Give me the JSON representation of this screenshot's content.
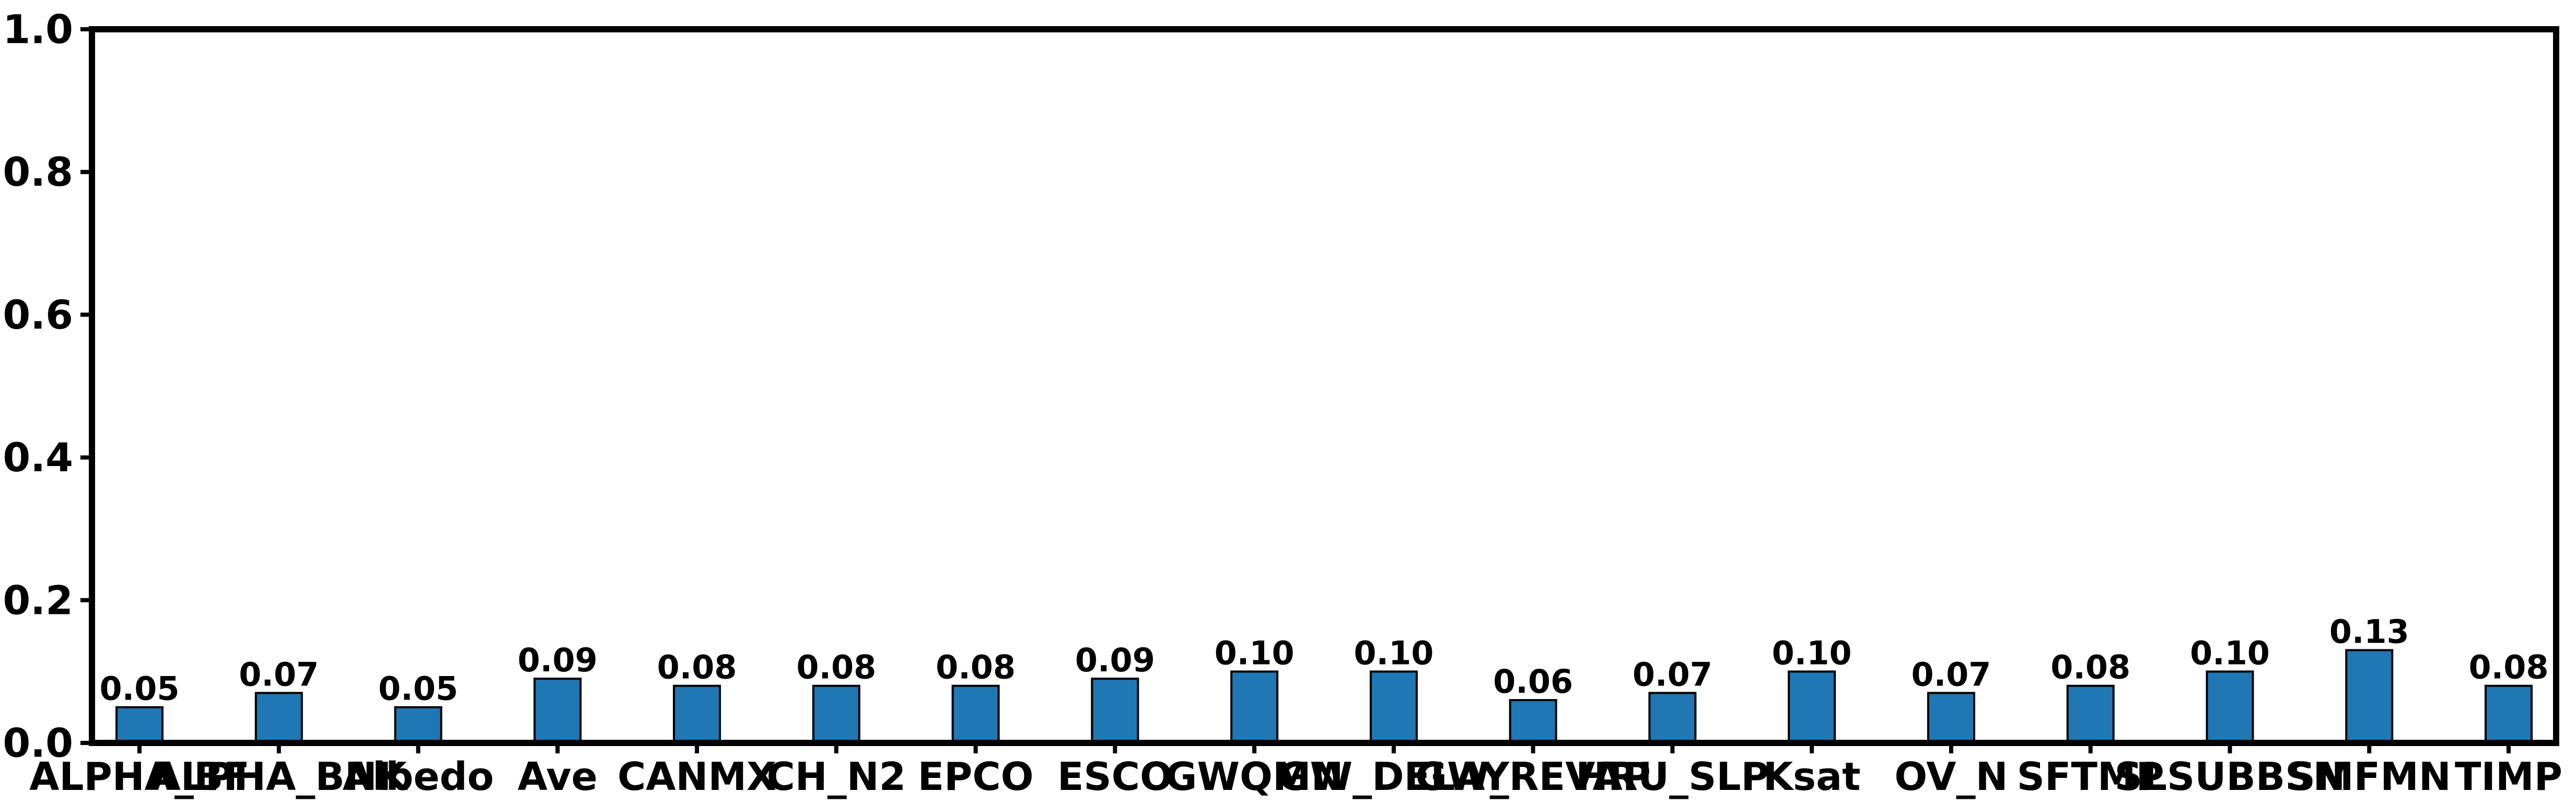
{
  "chart_data": {
    "type": "bar",
    "title": "",
    "xlabel": "",
    "ylabel": "",
    "ylim": [
      0,
      1.0
    ],
    "yticks": [
      "0.0",
      "0.2",
      "0.4",
      "0.6",
      "0.8",
      "1.0"
    ],
    "grid": false,
    "bar_color": "#1f77b4",
    "bar_edge_color": "#000000",
    "categories": [
      "ALPHA_BF",
      "ALPHA_BNK",
      "Albedo",
      "Ave",
      "CANMX",
      "CH_N2",
      "EPCO",
      "ESCO",
      "GWQMN",
      "GW_DELAY",
      "GW_REVAP",
      "HRU_SLP",
      "Ksat",
      "OV_N",
      "SFTMP",
      "SLSUBBSN",
      "SMFMN",
      "TIMP"
    ],
    "values": [
      0.05,
      0.07,
      0.05,
      0.09,
      0.08,
      0.08,
      0.08,
      0.09,
      0.1,
      0.1,
      0.06,
      0.07,
      0.1,
      0.07,
      0.08,
      0.1,
      0.13,
      0.08
    ],
    "value_labels": [
      "0.05",
      "0.07",
      "0.05",
      "0.09",
      "0.08",
      "0.08",
      "0.08",
      "0.09",
      "0.10",
      "0.10",
      "0.06",
      "0.07",
      "0.10",
      "0.07",
      "0.08",
      "0.10",
      "0.13",
      "0.08"
    ]
  }
}
